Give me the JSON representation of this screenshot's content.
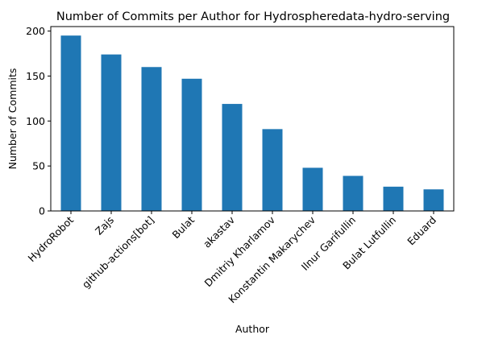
{
  "chart_data": {
    "type": "bar",
    "title": "Number of Commits per Author for Hydrospheredata-hydro-serving",
    "xlabel": "Author",
    "ylabel": "Number of Commits",
    "categories": [
      "HydroRobot",
      "Zajs",
      "github-actions[bot]",
      "Bulat",
      "akastav",
      "Dmitriy Kharlamov",
      "Konstantin Makarychev",
      "Ilnur Garifullin",
      "Bulat Lutfullin",
      "Eduard"
    ],
    "values": [
      195,
      174,
      160,
      147,
      119,
      91,
      48,
      39,
      27,
      24
    ],
    "ylim": [
      0,
      205
    ],
    "yticks": [
      0,
      50,
      100,
      150,
      200
    ],
    "grid": false,
    "bar_color": "#1f77b4"
  }
}
